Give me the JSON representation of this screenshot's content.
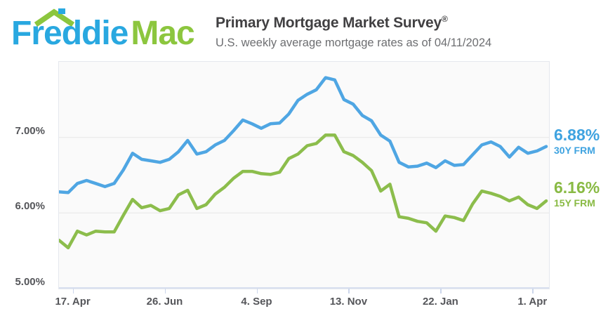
{
  "logo": {
    "word1": "Freddie",
    "word2": "Mac",
    "blue": "#29a8e0",
    "green": "#8cc63e"
  },
  "header": {
    "title": "Primary Mortgage Market Survey",
    "registered": "®",
    "subtitle": "U.S. weekly average mortgage rates as of 04/11/2024"
  },
  "chart_data": {
    "type": "line",
    "title": "Primary Mortgage Market Survey",
    "as_of_date": "04/11/2024",
    "interval": "weekly",
    "span_days": 371,
    "ylim": [
      5.0,
      8.0
    ],
    "grid": "horizontal",
    "y_ticks": [
      {
        "label": "7.00%",
        "value": 7.0
      },
      {
        "label": "6.00%",
        "value": 6.0
      },
      {
        "label": "5.00%",
        "value": 5.0
      }
    ],
    "x_ticks": [
      {
        "label": "17. Apr",
        "day": 11
      },
      {
        "label": "26. Jun",
        "day": 81
      },
      {
        "label": "4. Sep",
        "day": 151
      },
      {
        "label": "13. Nov",
        "day": 221
      },
      {
        "label": "22. Jan",
        "day": 291
      },
      {
        "label": "1. Apr",
        "day": 361
      }
    ],
    "series": [
      {
        "name": "30Y FRM",
        "end_label": "6.88%",
        "color": "#4fa6e3",
        "values": [
          6.28,
          6.27,
          6.39,
          6.43,
          6.39,
          6.35,
          6.39,
          6.57,
          6.79,
          6.71,
          6.69,
          6.67,
          6.71,
          6.81,
          6.96,
          6.78,
          6.81,
          6.9,
          6.96,
          7.09,
          7.23,
          7.18,
          7.12,
          7.18,
          7.19,
          7.31,
          7.49,
          7.57,
          7.63,
          7.79,
          7.76,
          7.5,
          7.44,
          7.29,
          7.22,
          7.03,
          6.95,
          6.67,
          6.61,
          6.62,
          6.66,
          6.6,
          6.69,
          6.63,
          6.64,
          6.77,
          6.9,
          6.94,
          6.88,
          6.74,
          6.87,
          6.79,
          6.82,
          6.88
        ]
      },
      {
        "name": "15Y FRM",
        "end_label": "6.16%",
        "color": "#8cbd4c",
        "values": [
          5.64,
          5.54,
          5.76,
          5.71,
          5.76,
          5.75,
          5.75,
          5.97,
          6.18,
          6.07,
          6.1,
          6.03,
          6.06,
          6.24,
          6.3,
          6.06,
          6.11,
          6.25,
          6.34,
          6.46,
          6.55,
          6.55,
          6.52,
          6.51,
          6.54,
          6.72,
          6.78,
          6.89,
          6.92,
          7.03,
          7.03,
          6.81,
          6.76,
          6.67,
          6.56,
          6.29,
          6.38,
          5.95,
          5.93,
          5.89,
          5.87,
          5.76,
          5.96,
          5.94,
          5.9,
          6.12,
          6.29,
          6.26,
          6.22,
          6.16,
          6.21,
          6.11,
          6.06,
          6.16
        ]
      }
    ],
    "legend_position": "right-of-line-ends",
    "colors": {
      "plot_background": "#fafafa",
      "gridline": "#e6e6e6",
      "axis_line": "#ccd6eb",
      "axis_text": "#55565a"
    }
  }
}
